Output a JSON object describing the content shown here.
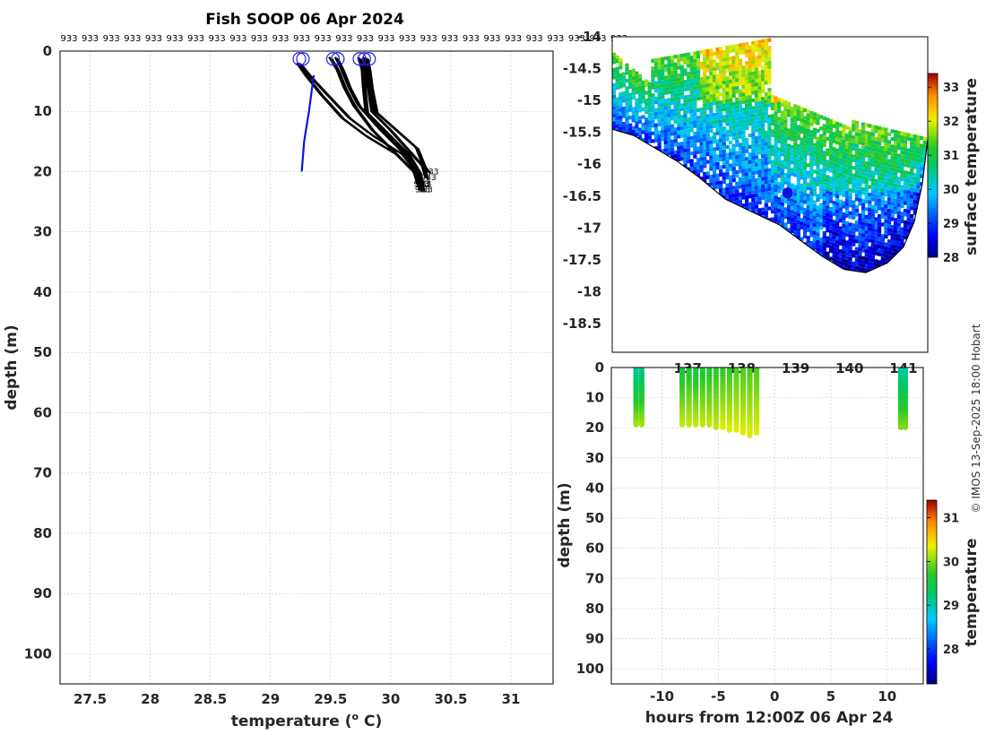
{
  "title": "Fish SOOP 06 Apr 2024",
  "credit": "© IMOS 13-Sep-2025 18:00 Hobart",
  "chart_data": [
    {
      "id": "profile",
      "type": "line",
      "xlabel": "temperature (",
      "xlabel_unit": "o",
      "xlabel_end": " C)",
      "ylabel": "depth (m)",
      "xlim": [
        27.25,
        31.35
      ],
      "ylim": [
        105,
        0
      ],
      "xticks": [
        27.5,
        28,
        28.5,
        29,
        29.5,
        30,
        30.5,
        31
      ],
      "yticks": [
        0,
        10,
        20,
        30,
        40,
        50,
        60,
        70,
        80,
        90,
        100
      ],
      "top_label": "933",
      "top_label_count": 27,
      "end_label": "933",
      "blue_profile": {
        "temps": [
          29.36,
          29.32,
          29.28,
          29.26
        ],
        "depths": [
          4,
          10,
          15,
          20
        ]
      },
      "profile_start_temps": [
        29.24,
        29.27,
        29.52,
        29.56,
        29.74,
        29.78,
        29.82
      ],
      "black_profiles": [
        {
          "temps": [
            29.23,
            29.3,
            29.42,
            29.6,
            29.8,
            30.05,
            30.2,
            30.25
          ],
          "depths": [
            2,
            4,
            7,
            11,
            14,
            17,
            20,
            22
          ]
        },
        {
          "temps": [
            29.25,
            29.33,
            29.47,
            29.66,
            29.86,
            30.1,
            30.22,
            30.24
          ],
          "depths": [
            2,
            4,
            7,
            11,
            14,
            17,
            20,
            22
          ]
        },
        {
          "temps": [
            29.5,
            29.56,
            29.62,
            29.7,
            29.85,
            30.05,
            30.2,
            30.25
          ],
          "depths": [
            1,
            3,
            6,
            9,
            13,
            17,
            20,
            23
          ]
        },
        {
          "temps": [
            29.55,
            29.6,
            29.66,
            29.74,
            29.92,
            30.12,
            30.23,
            30.27
          ],
          "depths": [
            1,
            3,
            6,
            9,
            13,
            17,
            20,
            23
          ]
        },
        {
          "temps": [
            29.74,
            29.77,
            29.78,
            29.8,
            29.95,
            30.15,
            30.24,
            30.26
          ],
          "depths": [
            1,
            3,
            6,
            10,
            13,
            17,
            20,
            22
          ]
        },
        {
          "temps": [
            29.78,
            29.8,
            29.82,
            29.85,
            30.0,
            30.18,
            30.27,
            30.3
          ],
          "depths": [
            1,
            3,
            6,
            10,
            13,
            17,
            19,
            21
          ]
        },
        {
          "temps": [
            29.8,
            29.82,
            29.84,
            29.88,
            30.05,
            30.22,
            30.28,
            30.32
          ],
          "depths": [
            1,
            3,
            6,
            10,
            13,
            16,
            19,
            20
          ]
        }
      ]
    },
    {
      "id": "map",
      "type": "heatmap",
      "xlim": [
        135.6,
        141.45
      ],
      "ylim": [
        -18.95,
        -14.0
      ],
      "xticks": [
        137,
        138,
        139,
        140,
        141
      ],
      "xtick_labels": [
        "137",
        "138",
        "139",
        "140",
        "141"
      ],
      "yticks": [
        -14,
        -14.5,
        -15,
        -15.5,
        -16,
        -16.5,
        -17,
        -17.5,
        -18,
        -18.5
      ],
      "ytick_labels": [
        "-14",
        "-14.5",
        "-15",
        "-15.5",
        "-16",
        "-16.5",
        "-17",
        "-17.5",
        "-18",
        "-18.5"
      ],
      "colorbar_label": "surface temperature",
      "clim": [
        28,
        33.4
      ],
      "cticks": [
        28,
        29,
        30,
        31,
        32,
        33
      ],
      "vessel_position": {
        "lon": 138.85,
        "lat": -16.45
      },
      "coastline": [
        [
          135.6,
          -15.45
        ],
        [
          136.0,
          -15.55
        ],
        [
          136.4,
          -15.75
        ],
        [
          136.8,
          -15.95
        ],
        [
          137.2,
          -16.2
        ],
        [
          137.7,
          -16.55
        ],
        [
          138.2,
          -16.75
        ],
        [
          138.7,
          -16.95
        ],
        [
          139.1,
          -17.2
        ],
        [
          139.5,
          -17.45
        ],
        [
          139.9,
          -17.65
        ],
        [
          140.3,
          -17.7
        ],
        [
          140.7,
          -17.55
        ],
        [
          141.0,
          -17.3
        ],
        [
          141.2,
          -16.9
        ],
        [
          141.35,
          -16.3
        ],
        [
          141.45,
          -15.6
        ]
      ]
    },
    {
      "id": "section",
      "type": "heatmap",
      "xlabel": "hours from 12:00Z 06 Apr 24",
      "ylabel": "depth (m)",
      "xlim": [
        -14.5,
        13.2
      ],
      "ylim": [
        105,
        0
      ],
      "xticks": [
        -10,
        -5,
        0,
        5,
        10
      ],
      "yticks": [
        0,
        10,
        20,
        30,
        40,
        50,
        60,
        70,
        80,
        90,
        100
      ],
      "colorbar_label": "temperature",
      "clim": [
        27.2,
        31.4
      ],
      "cticks": [
        28,
        29,
        30,
        31
      ],
      "casts": [
        {
          "hour": -12.3,
          "max_depth": 19,
          "t_surface": 29.0,
          "t_bottom": 30.1
        },
        {
          "hour": -11.8,
          "max_depth": 19,
          "t_surface": 29.1,
          "t_bottom": 30.1
        },
        {
          "hour": -8.2,
          "max_depth": 19,
          "t_surface": 29.5,
          "t_bottom": 30.2
        },
        {
          "hour": -7.6,
          "max_depth": 19,
          "t_surface": 29.6,
          "t_bottom": 30.2
        },
        {
          "hour": -7.0,
          "max_depth": 19,
          "t_surface": 29.5,
          "t_bottom": 30.2
        },
        {
          "hour": -6.4,
          "max_depth": 19,
          "t_surface": 29.6,
          "t_bottom": 30.2
        },
        {
          "hour": -5.8,
          "max_depth": 19,
          "t_surface": 29.6,
          "t_bottom": 30.2
        },
        {
          "hour": -5.2,
          "max_depth": 20,
          "t_surface": 29.7,
          "t_bottom": 30.2
        },
        {
          "hour": -4.6,
          "max_depth": 20,
          "t_surface": 29.7,
          "t_bottom": 30.3
        },
        {
          "hour": -4.0,
          "max_depth": 21,
          "t_surface": 29.7,
          "t_bottom": 30.3
        },
        {
          "hour": -3.4,
          "max_depth": 21,
          "t_surface": 29.8,
          "t_bottom": 30.3
        },
        {
          "hour": -2.8,
          "max_depth": 22,
          "t_surface": 29.8,
          "t_bottom": 30.3
        },
        {
          "hour": -2.2,
          "max_depth": 23,
          "t_surface": 29.8,
          "t_bottom": 30.3
        },
        {
          "hour": -1.6,
          "max_depth": 22,
          "t_surface": 29.8,
          "t_bottom": 30.3
        },
        {
          "hour": 11.2,
          "max_depth": 20,
          "t_surface": 29.0,
          "t_bottom": 30.0
        },
        {
          "hour": 11.6,
          "max_depth": 20,
          "t_surface": 29.0,
          "t_bottom": 30.0
        }
      ]
    }
  ]
}
